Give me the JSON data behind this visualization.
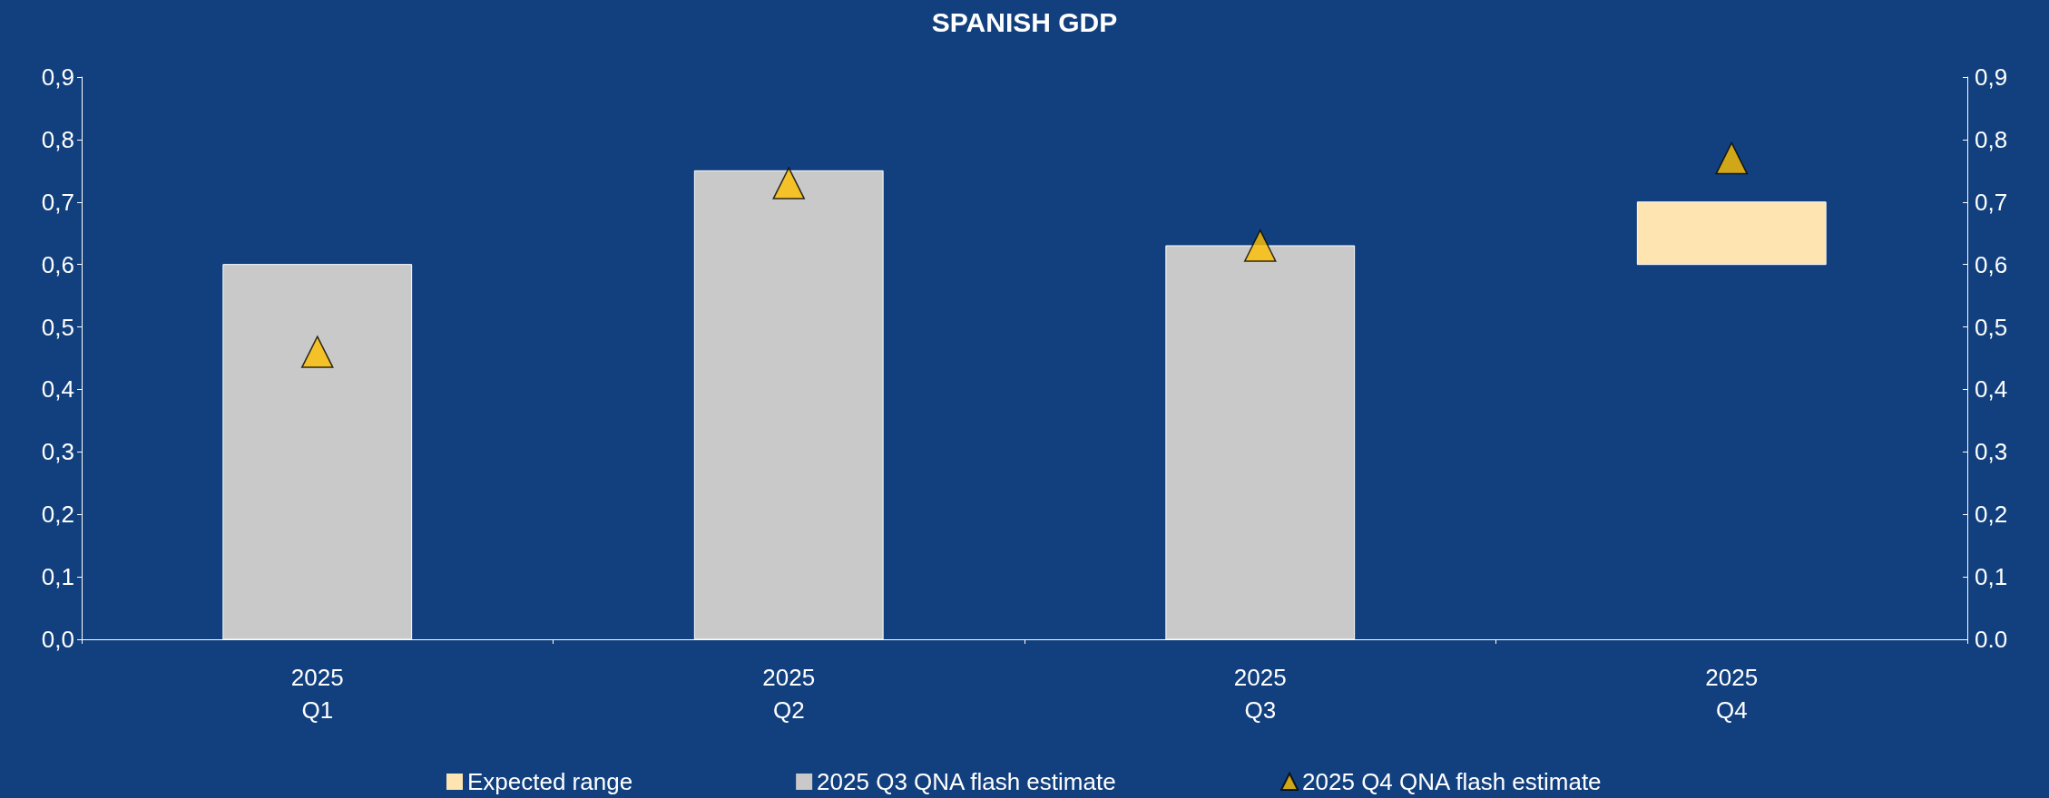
{
  "chart_data": {
    "type": "bar",
    "title": "SPANISH GDP",
    "categories": [
      "2025\nQ1",
      "2025\nQ2",
      "2025\nQ3",
      "2025\nQ4"
    ],
    "series": [
      {
        "name": "Expected range",
        "color": "#fde4b0",
        "base": [
          null,
          null,
          null,
          0.6
        ],
        "values": [
          null,
          null,
          null,
          0.1
        ]
      },
      {
        "name": "2025 Q3 QNA flash estimate",
        "color": "#c9c9c9",
        "values": [
          0.6,
          0.75,
          0.63,
          null
        ]
      },
      {
        "name": "2025 Q4 QNA flash estimate",
        "type": "scatter",
        "color": "#ffc000",
        "marker": "triangle",
        "values": [
          0.46,
          0.73,
          0.63,
          0.77
        ]
      }
    ],
    "ylim": [
      0,
      0.9
    ],
    "yticks": [
      {
        "value": 0,
        "label": "0,0"
      },
      {
        "value": 0.1,
        "label": "0,1"
      },
      {
        "value": 0.2,
        "label": "0,2"
      },
      {
        "value": 0.3,
        "label": "0,3"
      },
      {
        "value": 0.4,
        "label": "0,4"
      },
      {
        "value": 0.5,
        "label": "0,5"
      },
      {
        "value": 0.6,
        "label": "0,6"
      },
      {
        "value": 0.7,
        "label": "0,7"
      },
      {
        "value": 0.8,
        "label": "0,8"
      },
      {
        "value": 0.9,
        "label": "0,9"
      }
    ],
    "y2lim": [
      0,
      0.9
    ],
    "y2ticks": [
      {
        "value": 0,
        "label": "0.0"
      },
      {
        "value": 0.1,
        "label": "0,1"
      },
      {
        "value": 0.2,
        "label": "0,2"
      },
      {
        "value": 0.3,
        "label": "0,3"
      },
      {
        "value": 0.4,
        "label": "0,4"
      },
      {
        "value": 0.5,
        "label": "0,5"
      },
      {
        "value": 0.6,
        "label": "0,6"
      },
      {
        "value": 0.7,
        "label": "0,7"
      },
      {
        "value": 0.8,
        "label": "0,8"
      },
      {
        "value": 0.9,
        "label": "0,9"
      }
    ],
    "grid": false,
    "legend": "bottom"
  }
}
